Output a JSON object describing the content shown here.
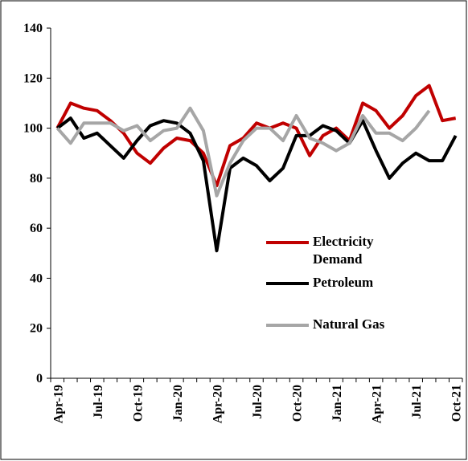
{
  "chart_data": {
    "type": "line",
    "categories": [
      "Apr-19",
      null,
      null,
      "Jul-19",
      null,
      null,
      "Oct-19",
      null,
      null,
      "Jan-20",
      null,
      null,
      "Apr-20",
      null,
      null,
      "Jul-20",
      null,
      null,
      "Oct-20",
      null,
      null,
      "Jan-21",
      null,
      null,
      "Apr-21",
      null,
      null,
      "Jul-21",
      null,
      null,
      "Oct-21"
    ],
    "series": [
      {
        "name": "Electricity Demand",
        "color": "#c00000",
        "values": [
          100,
          110,
          108,
          107,
          103,
          98,
          90,
          86,
          92,
          96,
          95,
          90,
          77,
          93,
          96,
          102,
          100,
          102,
          100,
          89,
          97,
          100,
          95,
          110,
          107,
          100,
          105,
          113,
          117,
          103,
          104
        ]
      },
      {
        "name": "Petroleum",
        "color": "#000000",
        "values": [
          100,
          104,
          96,
          98,
          93,
          88,
          95,
          101,
          103,
          102,
          98,
          87,
          51,
          84,
          88,
          85,
          79,
          84,
          97,
          97,
          101,
          99,
          94,
          103,
          91,
          80,
          86,
          90,
          87,
          87,
          97
        ]
      },
      {
        "name": "Natural Gas",
        "color": "#a6a6a6",
        "values": [
          100,
          94,
          102,
          102,
          102,
          99,
          101,
          95,
          99,
          100,
          108,
          99,
          73,
          86,
          95,
          100,
          100,
          95,
          105,
          96,
          94,
          91,
          94,
          105,
          98,
          98,
          95,
          100,
          107,
          null,
          null
        ]
      }
    ],
    "ylim": [
      0,
      140
    ],
    "yticks": [
      0,
      20,
      40,
      60,
      80,
      100,
      120,
      140
    ]
  }
}
